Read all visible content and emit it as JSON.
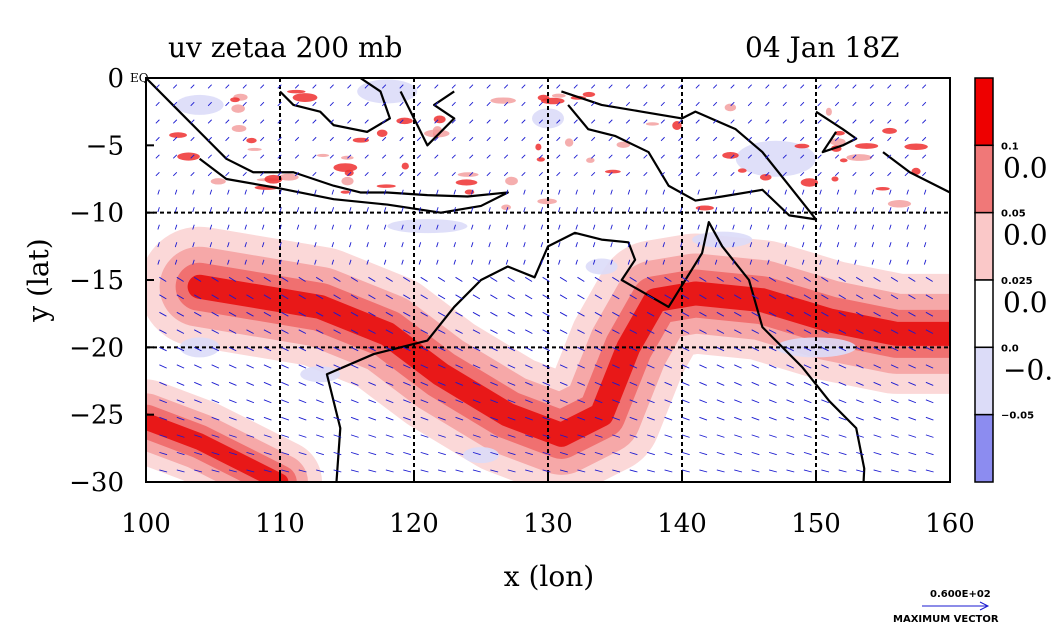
{
  "chart_data": {
    "type": "heatmap",
    "title_left": "uv zetaa 200 mb",
    "title_right": "04 Jan 18Z",
    "xlabel": "x (lon)",
    "ylabel": "y (lat)",
    "xlim": [
      100,
      160
    ],
    "ylim": [
      -30,
      0
    ],
    "x_ticks": [
      100,
      110,
      120,
      130,
      140,
      150,
      160
    ],
    "y_ticks": [
      0,
      -5,
      -10,
      -15,
      -20,
      -25,
      -30
    ],
    "x_tick_labels": [
      "100",
      "110",
      "120",
      "130",
      "140",
      "150",
      "160"
    ],
    "y_tick_labels": [
      "0",
      "−5",
      "−10",
      "−15",
      "−20",
      "−25",
      "−30"
    ],
    "grid": true,
    "corner_label": "EQ",
    "colorbar": {
      "levels": [
        0.1,
        0.05,
        0.025,
        0.0,
        -0.05
      ],
      "level_labels": [
        "0.1",
        "0.05",
        "0.025",
        "0.0",
        "−0.05"
      ],
      "big_labels": [
        "0.0",
        "0.0",
        "0.0",
        "−0."
      ],
      "colors": [
        "#ee0000",
        "#f07878",
        "#fac8c8",
        "#ffffff",
        "#dcdcf8",
        "#8c8cf0"
      ]
    },
    "vector_key": {
      "value_label": "0.600E+02",
      "caption": "MAXIMUM VECTOR"
    },
    "jet_bands": [
      {
        "name": "western jet",
        "centerline": [
          [
            104,
            -15.5
          ],
          [
            113,
            -17
          ],
          [
            118,
            -19
          ],
          [
            122,
            -22
          ],
          [
            127,
            -25
          ],
          [
            131,
            -26.5
          ],
          [
            134,
            -25
          ],
          [
            136,
            -20
          ],
          [
            138,
            -16.5
          ],
          [
            141,
            -16
          ],
          [
            146,
            -16.5
          ],
          [
            151,
            -18
          ],
          [
            156,
            -19
          ],
          [
            160,
            -19
          ]
        ]
      },
      {
        "name": "southwest band",
        "centerline": [
          [
            100,
            -25.5
          ],
          [
            104,
            -27
          ],
          [
            108,
            -29
          ],
          [
            110,
            -30
          ]
        ]
      }
    ],
    "colors": {
      "positive": "#ee0000",
      "negative": "#8c8cf0",
      "vector": "#1a1ad0",
      "coast": "#000000"
    }
  }
}
